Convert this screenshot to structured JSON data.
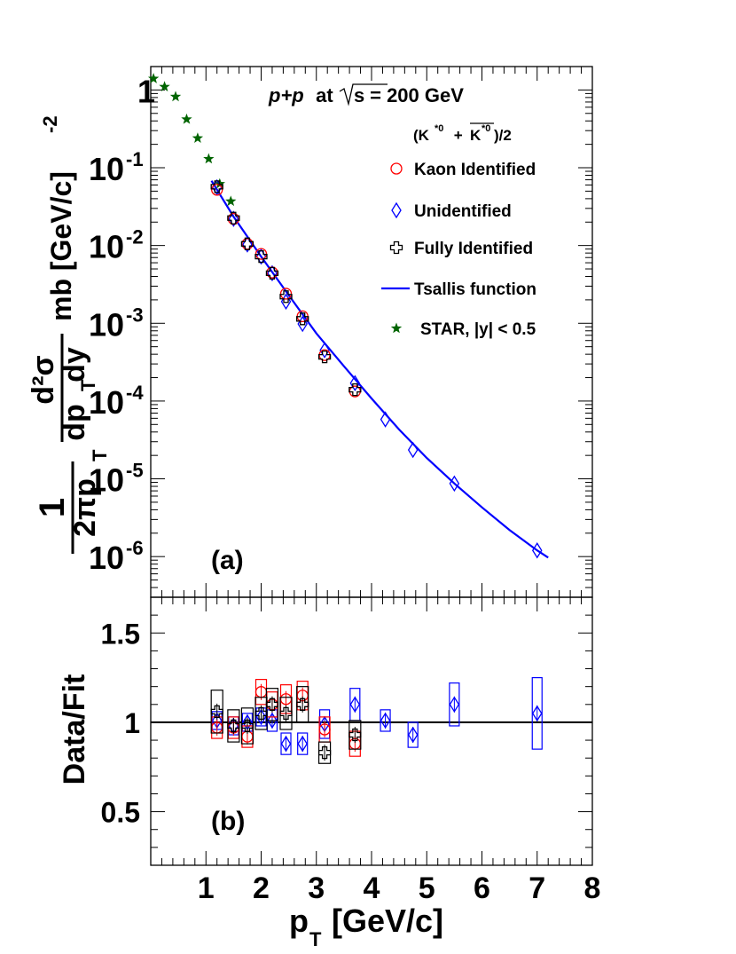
{
  "chart_data": [
    {
      "panel": "(a)",
      "type": "scatter",
      "yscale": "log",
      "xlim": [
        0,
        8
      ],
      "ylim": [
        3e-07,
        2
      ],
      "x_ticks": [
        "1",
        "2",
        "3",
        "4",
        "5",
        "6",
        "7",
        "8"
      ],
      "xlabel": {
        "main": "p",
        "sub": "T",
        "rest": " [GeV/c]"
      },
      "ylabel": {
        "prefix": "1",
        "prefix_den": "2πp",
        "prefix_den_sub": "T",
        "num": "d²σ",
        "den": "dp",
        "den_sub": "T",
        "den_rest": "dy",
        "units": "mb [GeV/c]",
        "units_exp": "-2"
      },
      "y_ticks": [
        {
          "value": 1,
          "label": "1",
          "exp": ""
        },
        {
          "value": 0.1,
          "label": "10",
          "exp": "-1"
        },
        {
          "value": 0.01,
          "label": "10",
          "exp": "-2"
        },
        {
          "value": 0.001,
          "label": "10",
          "exp": "-3"
        },
        {
          "value": 0.0001,
          "label": "10",
          "exp": "-4"
        },
        {
          "value": 1e-05,
          "label": "10",
          "exp": "-5"
        },
        {
          "value": 1e-06,
          "label": "10",
          "exp": "-6"
        }
      ],
      "title_parts": {
        "reaction": "p+p",
        "at": " at ",
        "sqrt_arg": "s",
        "energy": " = 200 GeV"
      },
      "species_label": {
        "open": "(K",
        "sup1": "*0",
        "plus": " + ",
        "kbar": "K",
        "sup2": "*0",
        "close": ")/2"
      },
      "legend": [
        {
          "key": "kaon",
          "label": "Kaon Identified",
          "marker": "circle",
          "color": "#ff0000"
        },
        {
          "key": "unid",
          "label": "Unidentified",
          "marker": "diamond",
          "color": "#0000ff"
        },
        {
          "key": "full",
          "label": "Fully Identified",
          "marker": "cross",
          "color": "#000000"
        },
        {
          "key": "fit",
          "label": "Tsallis function",
          "marker": "line",
          "color": "#0000ff"
        },
        {
          "key": "star",
          "label": "STAR, |y| < 0.5",
          "marker": "star",
          "color": "#006400"
        }
      ],
      "series": [
        {
          "name": "Kaon Identified",
          "key": "kaon",
          "x": [
            1.2,
            1.5,
            1.75,
            2.0,
            2.2,
            2.45,
            2.75,
            3.15,
            3.7
          ],
          "y": [
            0.052,
            0.022,
            0.0105,
            0.0078,
            0.0045,
            0.0024,
            0.00123,
            0.00039,
            0.000133
          ]
        },
        {
          "name": "Unidentified",
          "key": "unid",
          "x": [
            1.2,
            1.5,
            1.75,
            2.0,
            2.2,
            2.45,
            2.75,
            3.15,
            3.7,
            4.25,
            4.75,
            5.5,
            7.0
          ],
          "y": [
            0.056,
            0.022,
            0.0103,
            0.0072,
            0.0044,
            0.0019,
            0.00098,
            0.00045,
            0.00017,
            5.8e-05,
            2.35e-05,
            8.7e-06,
            1.2e-06
          ]
        },
        {
          "name": "Fully Identified",
          "key": "full",
          "x": [
            1.2,
            1.5,
            1.75,
            2.0,
            2.2,
            2.45,
            2.75,
            3.15,
            3.7
          ],
          "y": [
            0.057,
            0.0225,
            0.0105,
            0.0072,
            0.0044,
            0.0022,
            0.00114,
            0.00037,
            0.00014
          ]
        },
        {
          "name": "STAR, |y| < 0.5",
          "key": "star",
          "x": [
            0.05,
            0.25,
            0.45,
            0.65,
            0.85,
            1.05,
            1.25,
            1.45
          ],
          "y": [
            1.4,
            1.1,
            0.82,
            0.42,
            0.24,
            0.13,
            0.062,
            0.037
          ]
        }
      ],
      "fit_curve": {
        "name": "Tsallis function",
        "x": [
          1.1,
          1.5,
          2.0,
          2.5,
          3.0,
          3.5,
          4.0,
          4.5,
          5.0,
          5.5,
          6.0,
          6.5,
          7.0,
          7.2
        ],
        "y": [
          0.068,
          0.0235,
          0.0072,
          0.0023,
          0.00074,
          0.00028,
          0.000108,
          4.3e-05,
          1.85e-05,
          8.7e-06,
          4.3e-06,
          2.2e-06,
          1.2e-06,
          9.7e-07
        ]
      }
    },
    {
      "panel": "(b)",
      "type": "scatter",
      "ylabel": "Data/Fit",
      "xlim": [
        0,
        8
      ],
      "ylim": [
        0.2,
        1.7
      ],
      "y_ticks": [
        "0.5",
        "1",
        "1.5"
      ],
      "reference_line": 1,
      "series": [
        {
          "name": "Kaon Identified",
          "key": "kaon",
          "x": [
            1.2,
            1.5,
            1.75,
            2.0,
            2.2,
            2.45,
            2.75,
            3.15,
            3.7
          ],
          "y": [
            0.97,
            0.97,
            0.92,
            1.17,
            1.1,
            1.13,
            1.15,
            0.96,
            0.88
          ],
          "sys": [
            0.06,
            0.06,
            0.06,
            0.07,
            0.07,
            0.08,
            0.08,
            0.07,
            0.07
          ]
        },
        {
          "name": "Unidentified",
          "key": "unid",
          "x": [
            1.2,
            1.5,
            1.75,
            2.0,
            2.2,
            2.45,
            2.75,
            3.15,
            3.7,
            4.25,
            4.75,
            5.5,
            7.0
          ],
          "y": [
            1.01,
            0.98,
            1.0,
            1.03,
            1.01,
            0.88,
            0.88,
            0.99,
            1.1,
            1.01,
            0.93,
            1.1,
            1.05
          ],
          "sys": [
            0.05,
            0.05,
            0.05,
            0.05,
            0.06,
            0.06,
            0.06,
            0.08,
            0.09,
            0.06,
            0.07,
            0.12,
            0.2
          ]
        },
        {
          "name": "Fully Identified",
          "key": "full",
          "x": [
            1.2,
            1.5,
            1.75,
            2.0,
            2.2,
            2.45,
            2.75,
            3.15,
            3.7
          ],
          "y": [
            1.06,
            0.98,
            0.98,
            1.05,
            1.1,
            1.05,
            1.1,
            0.83,
            0.93
          ],
          "sys": [
            0.12,
            0.09,
            0.1,
            0.09,
            0.09,
            0.09,
            0.1,
            0.06,
            0.08
          ]
        }
      ]
    }
  ]
}
